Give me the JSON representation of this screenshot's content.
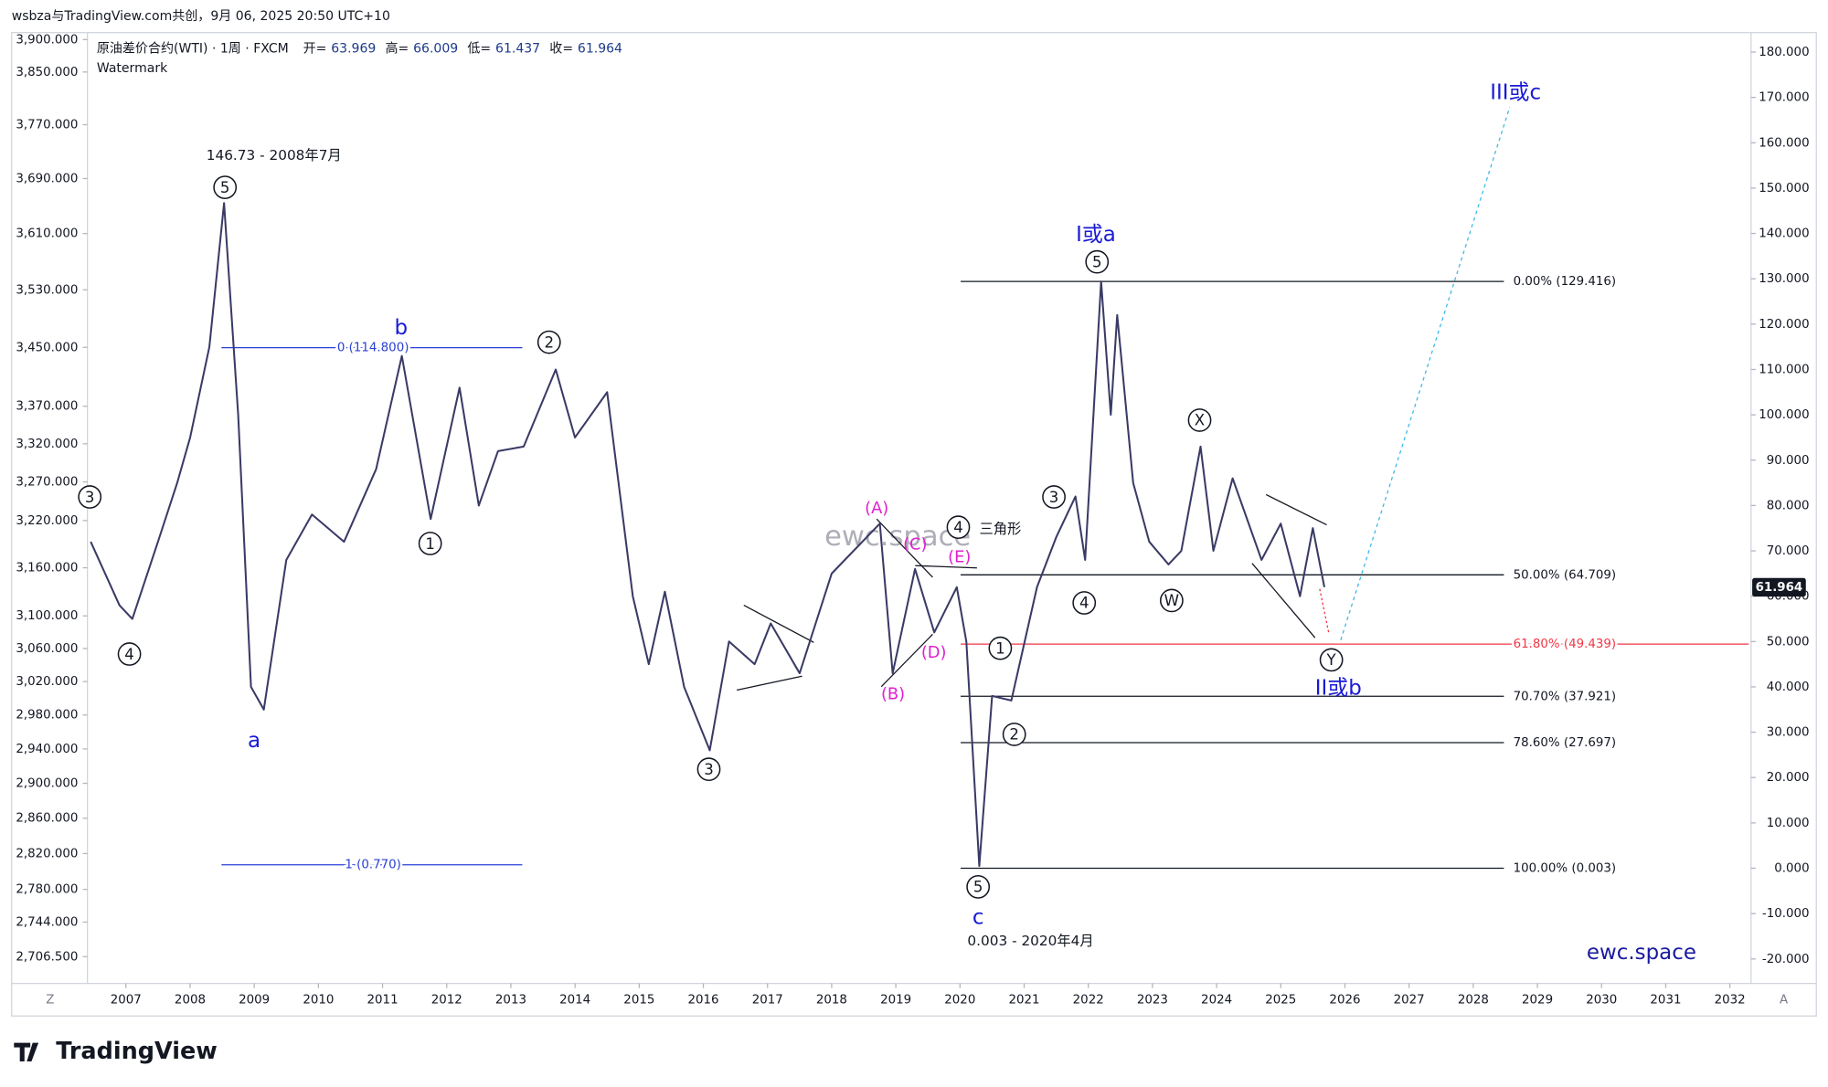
{
  "header": {
    "attribution": "wsbza与TradingView.com共创，9月 06, 2025 20:50 UTC+10",
    "symbol": "原油差价合约(WTI) · 1周 · FXCM",
    "ohlc": [
      {
        "label": "开=",
        "value": 63.969
      },
      {
        "label": "高=",
        "value": 66.009
      },
      {
        "label": "低=",
        "value": 61.437
      },
      {
        "label": "收=",
        "value": 61.964
      }
    ],
    "watermark": "Watermark"
  },
  "chart_data": {
    "type": "line",
    "color": "#3a3a66",
    "x": [
      2006.45,
      2006.9,
      2007.1,
      2007.5,
      2007.8,
      2008.0,
      2008.3,
      2008.53,
      2008.75,
      2008.95,
      2009.15,
      2009.5,
      2009.9,
      2010.4,
      2010.9,
      2011.3,
      2011.75,
      2012.2,
      2012.5,
      2012.8,
      2013.2,
      2013.7,
      2014.0,
      2014.5,
      2014.9,
      2015.15,
      2015.4,
      2015.7,
      2016.1,
      2016.4,
      2016.8,
      2017.05,
      2017.5,
      2018.0,
      2018.75,
      2018.95,
      2019.3,
      2019.6,
      2019.95,
      2020.1,
      2020.3,
      2020.5,
      2020.8,
      2021.2,
      2021.5,
      2021.8,
      2021.95,
      2022.2,
      2022.35,
      2022.45,
      2022.7,
      2022.95,
      2023.25,
      2023.45,
      2023.75,
      2023.95,
      2024.25,
      2024.7,
      2025.0,
      2025.3,
      2025.5,
      2025.68
    ],
    "values": [
      72,
      58,
      55,
      72,
      85,
      95,
      115,
      146.7,
      100,
      40,
      35,
      68,
      78,
      72,
      88,
      113,
      77,
      106,
      80,
      92,
      93,
      110,
      95,
      105,
      60,
      45,
      61,
      40,
      26,
      50,
      45,
      54,
      43,
      65,
      76,
      43,
      66,
      52,
      62,
      50,
      0.5,
      38,
      37,
      62,
      73,
      82,
      68,
      129.4,
      100,
      122,
      85,
      72,
      67,
      70,
      93,
      70,
      86,
      68,
      76,
      60,
      75,
      62
    ],
    "xlim": [
      2006.4,
      2032.33
    ],
    "xticks": [
      2007,
      2008,
      2009,
      2010,
      2011,
      2012,
      2013,
      2014,
      2015,
      2016,
      2017,
      2018,
      2019,
      2020,
      2021,
      2022,
      2023,
      2024,
      2025,
      2026,
      2027,
      2028,
      2029,
      2030,
      2031,
      2032
    ],
    "ylim": [
      -25.4,
      184.3
    ],
    "yticks": [
      {
        "value": -20,
        "label": "-20.000"
      },
      {
        "value": -10,
        "label": "-10.000"
      },
      {
        "value": 0,
        "label": "0.000"
      },
      {
        "value": 10,
        "label": "10.000"
      },
      {
        "value": 20,
        "label": "20.000"
      },
      {
        "value": 30,
        "label": "30.000"
      },
      {
        "value": 40,
        "label": "40.000"
      },
      {
        "value": 50,
        "label": "50.000"
      },
      {
        "value": 60,
        "label": "60.000"
      },
      {
        "value": 70,
        "label": "70.000"
      },
      {
        "value": 80,
        "label": "80.000"
      },
      {
        "value": 90,
        "label": "90.000"
      },
      {
        "value": 100,
        "label": "100.000"
      },
      {
        "value": 110,
        "label": "110.000"
      },
      {
        "value": 120,
        "label": "120.000"
      },
      {
        "value": 130,
        "label": "130.000"
      },
      {
        "value": 140,
        "label": "140.000"
      },
      {
        "value": 150,
        "label": "150.000"
      },
      {
        "value": 160,
        "label": "160.000"
      },
      {
        "value": 170,
        "label": "170.000"
      },
      {
        "value": 180,
        "label": "180.000"
      }
    ],
    "y2log": true,
    "y2lim": [
      2677.8,
      3910.9
    ],
    "y2ticks": [
      {
        "value": 3900,
        "label": "3,900.000"
      },
      {
        "value": 3850,
        "label": "3,850.000"
      },
      {
        "value": 3770,
        "label": "3,770.000"
      },
      {
        "value": 3690,
        "label": "3,690.000"
      },
      {
        "value": 3610,
        "label": "3,610.000"
      },
      {
        "value": 3530,
        "label": "3,530.000"
      },
      {
        "value": 3450,
        "label": "3,450.000"
      },
      {
        "value": 3370,
        "label": "3,370.000"
      },
      {
        "value": 3320,
        "label": "3,320.000"
      },
      {
        "value": 3270,
        "label": "3,270.000"
      },
      {
        "value": 3220,
        "label": "3,220.000"
      },
      {
        "value": 3160,
        "label": "3,160.000"
      },
      {
        "value": 3100,
        "label": "3,100.000"
      },
      {
        "value": 3060,
        "label": "3,060.000"
      },
      {
        "value": 3020,
        "label": "3,020.000"
      },
      {
        "value": 2980,
        "label": "2,980.000"
      },
      {
        "value": 2940,
        "label": "2,940.000"
      },
      {
        "value": 2900,
        "label": "2,900.000"
      },
      {
        "value": 2860,
        "label": "2,860.000"
      },
      {
        "value": 2820,
        "label": "2,820.000"
      },
      {
        "value": 2780,
        "label": "2,780.000"
      },
      {
        "value": 2744,
        "label": "2,744.000"
      },
      {
        "value": 2706.5,
        "label": "2,706.500"
      }
    ],
    "fib_left": [
      {
        "label": "0 (114.800)",
        "value": 114.8
      },
      {
        "label": "1 (0.770)",
        "value": 0.77
      }
    ],
    "fib": [
      {
        "label": "0.00% (129.416)",
        "value": 129.416,
        "color": "#131722"
      },
      {
        "label": "50.00% (64.709)",
        "value": 64.709,
        "color": "#131722"
      },
      {
        "label": "61.80% (49.439)",
        "value": 49.439,
        "color": "#f23645"
      },
      {
        "label": "70.70% (37.921)",
        "value": 37.921,
        "color": "#131722"
      },
      {
        "label": "78.60% (27.697)",
        "value": 27.697,
        "color": "#131722"
      },
      {
        "label": "100.00% (0.003)",
        "value": 0.003,
        "color": "#131722"
      }
    ],
    "annotations": [
      {
        "text": "146.73 - 2008年7月",
        "color": "#131722"
      },
      {
        "text": "5",
        "color": "#131722"
      },
      {
        "text": "b",
        "color": "#1a1ad6"
      },
      {
        "text": "2",
        "color": "#131722"
      },
      {
        "text": "a",
        "color": "#1a1ad6"
      },
      {
        "text": "4",
        "color": "#131722"
      },
      {
        "text": "3",
        "color": "#131722"
      },
      {
        "text": "1",
        "color": "#131722"
      },
      {
        "text": "3",
        "color": "#131722"
      },
      {
        "text": "(A)",
        "color": "#e020d0"
      },
      {
        "text": "(C)",
        "color": "#e020d0"
      },
      {
        "text": "(E)",
        "color": "#e020d0"
      },
      {
        "text": "(D)",
        "color": "#e020d0"
      },
      {
        "text": "(B)",
        "color": "#e020d0"
      },
      {
        "text": "4",
        "color": "#131722"
      },
      {
        "text": "三角形",
        "color": "#131722"
      },
      {
        "text": "1",
        "color": "#131722"
      },
      {
        "text": "2",
        "color": "#131722"
      },
      {
        "text": "5",
        "color": "#131722"
      },
      {
        "text": "c",
        "color": "#1a1ad6"
      },
      {
        "text": "0.003 - 2020年4月",
        "color": "#131722"
      },
      {
        "text": "3",
        "color": "#131722"
      },
      {
        "text": "4",
        "color": "#131722"
      },
      {
        "text": "I或a",
        "color": "#1a1ad6"
      },
      {
        "text": "5",
        "color": "#131722"
      },
      {
        "text": "X",
        "color": "#131722"
      },
      {
        "text": "W",
        "color": "#131722"
      },
      {
        "text": "Y",
        "color": "#131722"
      },
      {
        "text": "II或b",
        "color": "#1a1ad6"
      },
      {
        "text": "III或c",
        "color": "#1a1ad6"
      }
    ],
    "center_watermark": "ewc.space",
    "brand": "ewc.space"
  },
  "axis_buttons": [
    "Z",
    "A"
  ],
  "logo": "TradingView"
}
